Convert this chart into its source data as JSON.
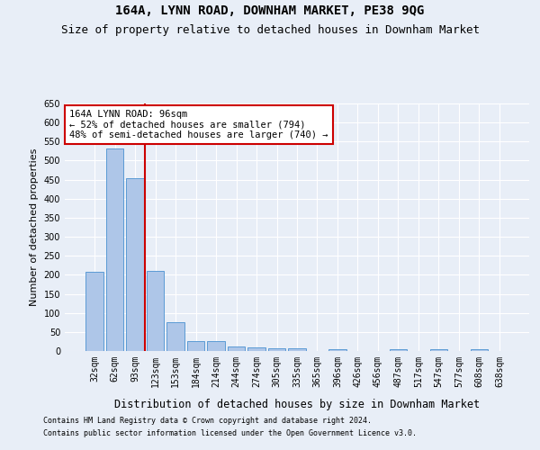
{
  "title": "164A, LYNN ROAD, DOWNHAM MARKET, PE38 9QG",
  "subtitle": "Size of property relative to detached houses in Downham Market",
  "xlabel": "Distribution of detached houses by size in Downham Market",
  "ylabel": "Number of detached properties",
  "categories": [
    "32sqm",
    "62sqm",
    "93sqm",
    "123sqm",
    "153sqm",
    "184sqm",
    "214sqm",
    "244sqm",
    "274sqm",
    "305sqm",
    "335sqm",
    "365sqm",
    "396sqm",
    "426sqm",
    "456sqm",
    "487sqm",
    "517sqm",
    "547sqm",
    "577sqm",
    "608sqm",
    "638sqm"
  ],
  "values": [
    207,
    533,
    453,
    210,
    75,
    27,
    25,
    13,
    10,
    8,
    8,
    0,
    5,
    0,
    0,
    5,
    0,
    5,
    0,
    5,
    0
  ],
  "bar_color": "#aec6e8",
  "bar_edgecolor": "#5b9bd5",
  "vline_x": 2.5,
  "vline_color": "#cc0000",
  "annotation_text": "164A LYNN ROAD: 96sqm\n← 52% of detached houses are smaller (794)\n48% of semi-detached houses are larger (740) →",
  "annotation_box_color": "#ffffff",
  "annotation_box_edgecolor": "#cc0000",
  "ylim": [
    0,
    650
  ],
  "yticks": [
    0,
    50,
    100,
    150,
    200,
    250,
    300,
    350,
    400,
    450,
    500,
    550,
    600,
    650
  ],
  "footnote1": "Contains HM Land Registry data © Crown copyright and database right 2024.",
  "footnote2": "Contains public sector information licensed under the Open Government Licence v3.0.",
  "bg_color": "#e8eef7",
  "grid_color": "#ffffff",
  "title_fontsize": 10,
  "subtitle_fontsize": 9,
  "tick_fontsize": 7,
  "ylabel_fontsize": 8,
  "xlabel_fontsize": 8.5,
  "footnote_fontsize": 6,
  "annot_fontsize": 7.5
}
